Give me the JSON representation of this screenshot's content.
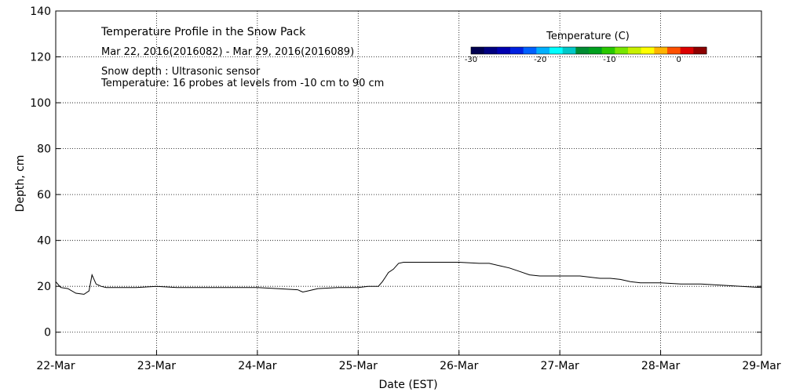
{
  "chart_data": {
    "type": "line",
    "title": "Temperature Profile in the Snow Pack",
    "subtitle": "Mar 22, 2016(2016082) - Mar 29, 2016(2016089)",
    "notes": [
      "Snow depth : Ultrasonic sensor",
      "Temperature: 16 probes at levels from -10 cm to 90 cm"
    ],
    "xlabel": "Date (EST)",
    "ylabel": "Depth, cm",
    "xlim": [
      0,
      7
    ],
    "ylim": [
      -10,
      140
    ],
    "x_ticks": [
      {
        "x": 0,
        "label": "22-Mar"
      },
      {
        "x": 1,
        "label": "23-Mar"
      },
      {
        "x": 2,
        "label": "24-Mar"
      },
      {
        "x": 3,
        "label": "25-Mar"
      },
      {
        "x": 4,
        "label": "26-Mar"
      },
      {
        "x": 5,
        "label": "27-Mar"
      },
      {
        "x": 6,
        "label": "28-Mar"
      },
      {
        "x": 7,
        "label": "29-Mar"
      }
    ],
    "y_ticks": [
      0,
      20,
      40,
      60,
      80,
      100,
      120,
      140
    ],
    "grid": true,
    "series": [
      {
        "x": [
          0.0,
          0.05,
          0.12,
          0.2,
          0.28,
          0.33,
          0.36,
          0.38,
          0.4,
          0.45,
          0.5,
          0.6,
          0.8,
          1.0,
          1.2,
          1.5,
          1.8,
          2.0,
          2.2,
          2.4,
          2.45,
          2.5,
          2.55,
          2.6,
          2.8,
          3.0,
          3.1,
          3.2,
          3.24,
          3.27,
          3.3,
          3.35,
          3.4,
          3.45,
          3.5,
          3.6,
          3.8,
          4.0,
          4.2,
          4.3,
          4.4,
          4.5,
          4.6,
          4.7,
          4.8,
          5.0,
          5.2,
          5.4,
          5.5,
          5.6,
          5.7,
          5.8,
          6.0,
          6.2,
          6.4,
          6.6,
          6.8,
          7.0
        ],
        "y": [
          22,
          19.5,
          19,
          17,
          16.5,
          18,
          25,
          23,
          21,
          20,
          19.5,
          19.5,
          19.5,
          20,
          19.5,
          19.5,
          19.5,
          19.5,
          19,
          18.5,
          17.5,
          18,
          18.5,
          19,
          19.5,
          19.5,
          20,
          20,
          22,
          24,
          26,
          27.5,
          30,
          30.5,
          30.5,
          30.5,
          30.5,
          30.5,
          30,
          30,
          29,
          28,
          26.5,
          25,
          24.5,
          24.5,
          24.5,
          23.5,
          23.5,
          23,
          22,
          21.5,
          21.5,
          21,
          21,
          20.5,
          20,
          19.5
        ]
      }
    ],
    "colorbar": {
      "label": "Temperature (C)",
      "range": [
        -30,
        4
      ],
      "ticks": [
        {
          "value": -30,
          "label": "-30"
        },
        {
          "value": -20,
          "label": "-20"
        },
        {
          "value": -10,
          "label": "-10"
        },
        {
          "value": 0,
          "label": "0"
        }
      ],
      "colors": [
        "#000050",
        "#000080",
        "#0000b0",
        "#0020e0",
        "#0060ff",
        "#00b0ff",
        "#00ffff",
        "#00c8c8",
        "#008c32",
        "#00a01e",
        "#28c800",
        "#78e600",
        "#c8f000",
        "#ffff00",
        "#ffb400",
        "#ff5000",
        "#dc0000",
        "#8c0000"
      ]
    }
  }
}
